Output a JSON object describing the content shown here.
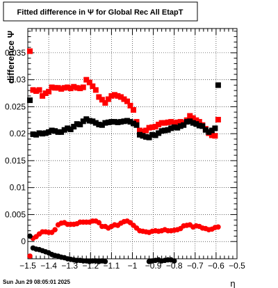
{
  "chart_data": {
    "type": "scatter",
    "title": "Fitted difference in  Ψ  for Global Rec All EtapT",
    "xlabel": "η",
    "ylabel": "difference Ψ",
    "xlim": [
      -1.5,
      -0.5
    ],
    "ylim": [
      -0.0032,
      0.0395
    ],
    "grid": true,
    "x_ticks": [
      -1.5,
      -1.4,
      -1.3,
      -1.2,
      -1.1,
      -1.0,
      -0.9,
      -0.8,
      -0.7,
      -0.6,
      -0.5
    ],
    "x_tick_labels": [
      "−1.5",
      "−1.4",
      "−1.3",
      "−1.2",
      "−1.1",
      "−1",
      "−0.9",
      "−0.8",
      "−0.7",
      "−0.6",
      "−0.5"
    ],
    "y_ticks": [
      0,
      0.005,
      0.01,
      0.015,
      0.02,
      0.025,
      0.03,
      0.035
    ],
    "y_tick_labels": [
      "0",
      "0.005",
      "0.01",
      "0.015",
      "0.02",
      "0.025",
      "0.03",
      "0.035"
    ],
    "series": [
      {
        "marker": "square",
        "color": "#ff0000",
        "points": [
          [
            -1.49,
            0.0353
          ],
          [
            -1.475,
            0.0281
          ],
          [
            -1.46,
            0.0279
          ],
          [
            -1.445,
            0.0281
          ],
          [
            -1.43,
            0.027
          ],
          [
            -1.415,
            0.0275
          ],
          [
            -1.4,
            0.0278
          ],
          [
            -1.385,
            0.0286
          ],
          [
            -1.37,
            0.0285
          ],
          [
            -1.355,
            0.0285
          ],
          [
            -1.34,
            0.0283
          ],
          [
            -1.325,
            0.0285
          ],
          [
            -1.31,
            0.0286
          ],
          [
            -1.295,
            0.0284
          ],
          [
            -1.28,
            0.0287
          ],
          [
            -1.265,
            0.0285
          ],
          [
            -1.25,
            0.0284
          ],
          [
            -1.235,
            0.0286
          ],
          [
            -1.22,
            0.03
          ],
          [
            -1.205,
            0.0295
          ],
          [
            -1.19,
            0.0288
          ],
          [
            -1.175,
            0.0281
          ],
          [
            -1.16,
            0.0268
          ],
          [
            -1.145,
            0.0263
          ],
          [
            -1.13,
            0.0257
          ],
          [
            -1.115,
            0.0264
          ],
          [
            -1.1,
            0.027
          ],
          [
            -1.085,
            0.0272
          ],
          [
            -1.07,
            0.027
          ],
          [
            -1.055,
            0.0268
          ],
          [
            -1.04,
            0.0264
          ],
          [
            -1.025,
            0.026
          ],
          [
            -1.01,
            0.0252
          ],
          [
            -0.995,
            0.0244
          ],
          [
            -0.98,
            0.0222
          ],
          [
            -0.965,
            0.0206
          ],
          [
            -0.95,
            0.0204
          ],
          [
            -0.935,
            0.0206
          ],
          [
            -0.92,
            0.0211
          ],
          [
            -0.905,
            0.0212
          ],
          [
            -0.89,
            0.0213
          ],
          [
            -0.875,
            0.0217
          ],
          [
            -0.86,
            0.022
          ],
          [
            -0.845,
            0.022
          ],
          [
            -0.83,
            0.0221
          ],
          [
            -0.815,
            0.0222
          ],
          [
            -0.8,
            0.022
          ],
          [
            -0.785,
            0.0221
          ],
          [
            -0.77,
            0.0222
          ],
          [
            -0.755,
            0.022
          ],
          [
            -0.74,
            0.0225
          ],
          [
            -0.725,
            0.0233
          ],
          [
            -0.71,
            0.0229
          ],
          [
            -0.695,
            0.0225
          ],
          [
            -0.68,
            0.0222
          ],
          [
            -0.665,
            0.0216
          ],
          [
            -0.65,
            0.0209
          ],
          [
            -0.635,
            0.0201
          ],
          [
            -0.62,
            0.0197
          ],
          [
            -0.605,
            0.0196
          ],
          [
            -0.59,
            0.0226
          ]
        ]
      },
      {
        "marker": "square",
        "color": "#000000",
        "points": [
          [
            -1.49,
            0.0262
          ],
          [
            -1.475,
            0.0199
          ],
          [
            -1.46,
            0.0198
          ],
          [
            -1.445,
            0.0201
          ],
          [
            -1.43,
            0.02
          ],
          [
            -1.415,
            0.0201
          ],
          [
            -1.4,
            0.0203
          ],
          [
            -1.385,
            0.0206
          ],
          [
            -1.37,
            0.0205
          ],
          [
            -1.355,
            0.0203
          ],
          [
            -1.34,
            0.0203
          ],
          [
            -1.325,
            0.0207
          ],
          [
            -1.31,
            0.021
          ],
          [
            -1.295,
            0.0208
          ],
          [
            -1.28,
            0.0213
          ],
          [
            -1.265,
            0.0218
          ],
          [
            -1.25,
            0.0217
          ],
          [
            -1.235,
            0.0223
          ],
          [
            -1.22,
            0.0227
          ],
          [
            -1.205,
            0.0224
          ],
          [
            -1.19,
            0.0223
          ],
          [
            -1.175,
            0.022
          ],
          [
            -1.16,
            0.0217
          ],
          [
            -1.145,
            0.0216
          ],
          [
            -1.13,
            0.022
          ],
          [
            -1.115,
            0.0221
          ],
          [
            -1.1,
            0.0222
          ],
          [
            -1.085,
            0.0222
          ],
          [
            -1.07,
            0.0221
          ],
          [
            -1.055,
            0.0222
          ],
          [
            -1.04,
            0.0223
          ],
          [
            -1.025,
            0.0224
          ],
          [
            -1.01,
            0.0222
          ],
          [
            -0.995,
            0.0219
          ],
          [
            -0.98,
            0.0216
          ],
          [
            -0.965,
            0.0198
          ],
          [
            -0.95,
            0.0196
          ],
          [
            -0.935,
            0.0194
          ],
          [
            -0.92,
            0.0193
          ],
          [
            -0.905,
            0.0198
          ],
          [
            -0.89,
            0.0197
          ],
          [
            -0.875,
            0.0201
          ],
          [
            -0.86,
            0.0205
          ],
          [
            -0.845,
            0.0206
          ],
          [
            -0.83,
            0.0207
          ],
          [
            -0.815,
            0.021
          ],
          [
            -0.8,
            0.0212
          ],
          [
            -0.785,
            0.0211
          ],
          [
            -0.77,
            0.0214
          ],
          [
            -0.755,
            0.0216
          ],
          [
            -0.74,
            0.0222
          ],
          [
            -0.725,
            0.0223
          ],
          [
            -0.71,
            0.022
          ],
          [
            -0.695,
            0.0218
          ],
          [
            -0.68,
            0.0215
          ],
          [
            -0.665,
            0.0214
          ],
          [
            -0.65,
            0.0207
          ],
          [
            -0.635,
            0.0203
          ],
          [
            -0.62,
            0.0206
          ],
          [
            -0.605,
            0.021
          ],
          [
            -0.59,
            0.029
          ]
        ]
      },
      {
        "marker": "circle",
        "color": "#ff0000",
        "points": [
          [
            -1.49,
            -0.0027
          ],
          [
            -1.475,
            0.0006
          ],
          [
            -1.46,
            0.0009
          ],
          [
            -1.445,
            0.0014
          ],
          [
            -1.43,
            0.0018
          ],
          [
            -1.415,
            0.0018
          ],
          [
            -1.4,
            0.0017
          ],
          [
            -1.385,
            0.0017
          ],
          [
            -1.37,
            0.0022
          ],
          [
            -1.355,
            0.0031
          ],
          [
            -1.34,
            0.0034
          ],
          [
            -1.325,
            0.0035
          ],
          [
            -1.31,
            0.0032
          ],
          [
            -1.295,
            0.0032
          ],
          [
            -1.28,
            0.0032
          ],
          [
            -1.265,
            0.0033
          ],
          [
            -1.25,
            0.0036
          ],
          [
            -1.235,
            0.0036
          ],
          [
            -1.22,
            0.0036
          ],
          [
            -1.205,
            0.0036
          ],
          [
            -1.19,
            0.0038
          ],
          [
            -1.175,
            0.0038
          ],
          [
            -1.16,
            0.0035
          ],
          [
            -1.145,
            0.0028
          ],
          [
            -1.13,
            0.0028
          ],
          [
            -1.115,
            0.0025
          ],
          [
            -1.1,
            0.0028
          ],
          [
            -1.085,
            0.0031
          ],
          [
            -1.07,
            0.003
          ],
          [
            -1.055,
            0.0034
          ],
          [
            -1.04,
            0.0037
          ],
          [
            -1.025,
            0.0038
          ],
          [
            -1.01,
            0.0035
          ],
          [
            -0.995,
            0.003
          ],
          [
            -0.98,
            0.0025
          ],
          [
            -0.965,
            0.002
          ],
          [
            -0.95,
            0.0019
          ],
          [
            -0.935,
            0.0018
          ],
          [
            -0.92,
            0.0017
          ],
          [
            -0.905,
            0.0019
          ],
          [
            -0.89,
            0.002
          ],
          [
            -0.875,
            0.0019
          ],
          [
            -0.86,
            0.002
          ],
          [
            -0.845,
            0.0022
          ],
          [
            -0.83,
            0.002
          ],
          [
            -0.815,
            0.002
          ],
          [
            -0.8,
            0.0021
          ],
          [
            -0.785,
            0.0022
          ],
          [
            -0.77,
            0.0024
          ],
          [
            -0.755,
            0.0029
          ],
          [
            -0.74,
            0.003
          ],
          [
            -0.725,
            0.0031
          ],
          [
            -0.71,
            0.0027
          ],
          [
            -0.695,
            0.0029
          ],
          [
            -0.68,
            0.0028
          ],
          [
            -0.665,
            0.0025
          ],
          [
            -0.65,
            0.0024
          ],
          [
            -0.635,
            0.0022
          ],
          [
            -0.62,
            0.0023
          ],
          [
            -0.605,
            0.0026
          ],
          [
            -0.59,
            0.0027
          ]
        ]
      },
      {
        "marker": "circle",
        "color": "#000000",
        "points": [
          [
            -1.49,
            0.001
          ],
          [
            -1.475,
            -0.0012
          ],
          [
            -1.46,
            -0.0014
          ],
          [
            -1.445,
            -0.0015
          ],
          [
            -1.43,
            -0.0017
          ],
          [
            -1.415,
            -0.0019
          ],
          [
            -1.4,
            -0.0021
          ],
          [
            -1.385,
            -0.0024
          ],
          [
            -1.37,
            -0.0026
          ],
          [
            -1.355,
            -0.0027
          ],
          [
            -1.34,
            -0.0029
          ],
          [
            -1.325,
            -0.003
          ],
          [
            -1.31,
            -0.0032
          ],
          [
            -1.295,
            -0.0033
          ],
          [
            -1.28,
            -0.0034
          ],
          [
            -1.265,
            -0.0035
          ],
          [
            -1.25,
            -0.0035
          ],
          [
            -1.235,
            -0.0036
          ],
          [
            -1.22,
            -0.0036
          ],
          [
            -1.205,
            -0.0037
          ],
          [
            -1.19,
            -0.0036
          ],
          [
            -1.175,
            -0.0036
          ],
          [
            -1.16,
            -0.0037
          ],
          [
            -1.145,
            -0.0036
          ],
          [
            -1.13,
            -0.0037
          ],
          [
            -0.92,
            -0.0037
          ],
          [
            -0.905,
            -0.0036
          ],
          [
            -0.89,
            -0.0035
          ],
          [
            -0.875,
            -0.0034
          ],
          [
            -0.86,
            -0.0036
          ],
          [
            -0.845,
            -0.0035
          ],
          [
            -0.83,
            -0.0034
          ],
          [
            -0.815,
            -0.0034
          ],
          [
            -0.8,
            -0.0036
          ]
        ]
      }
    ]
  },
  "footer": {
    "date": "Sun Jun 29 08:05:01 2025"
  }
}
